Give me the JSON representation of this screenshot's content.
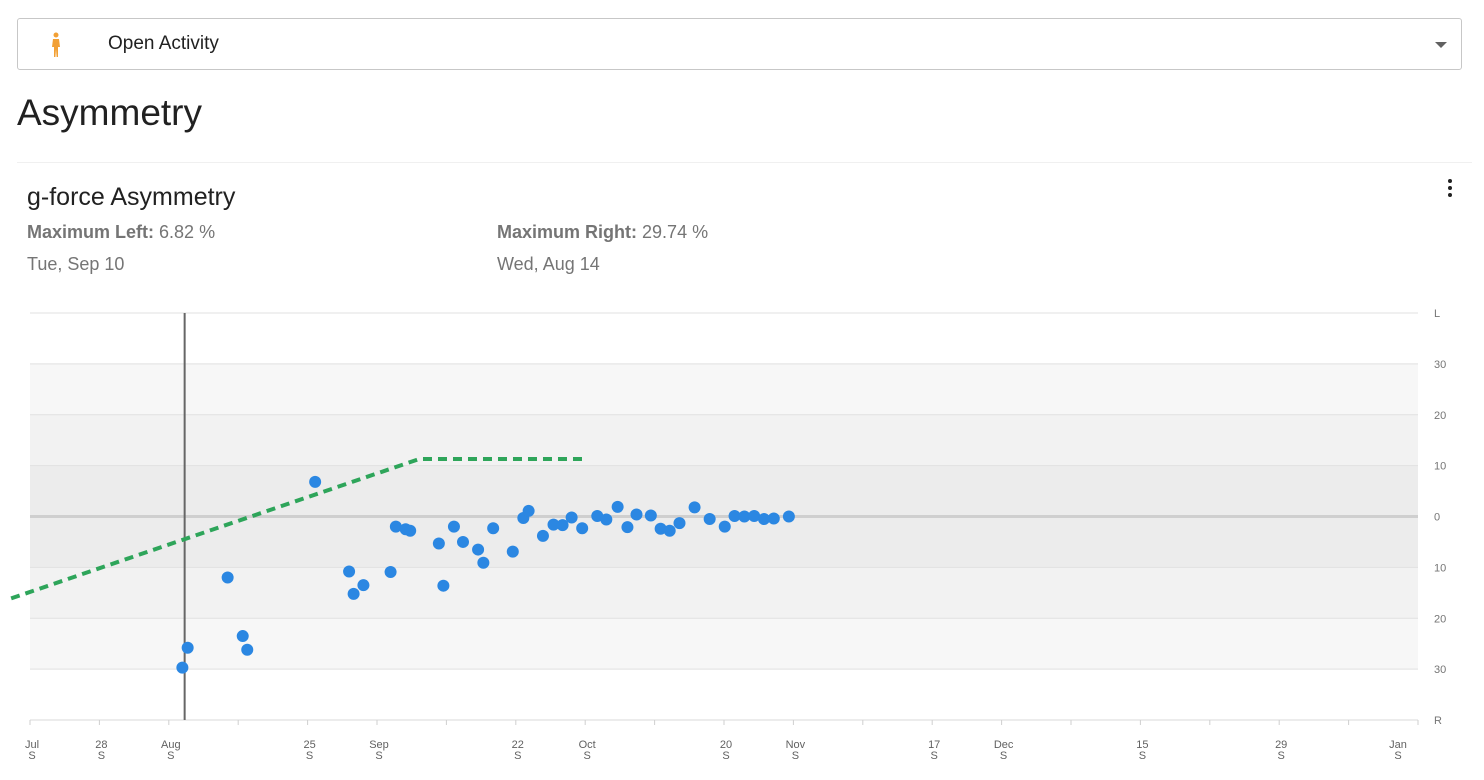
{
  "selector": {
    "label": "Open Activity",
    "icon": "person-figure-icon"
  },
  "page_title": "Asymmetry",
  "card": {
    "title": "g-force Asymmetry",
    "max_left": {
      "label": "Maximum Left:",
      "value": "6.82 %",
      "date": "Tue, Sep 10"
    },
    "max_right": {
      "label": "Maximum Right:",
      "value": "29.74 %",
      "date": "Wed, Aug 14"
    },
    "menu_icon": "more-vert-icon"
  },
  "colors": {
    "point": "#2b87e2",
    "trend": "#2ea55a",
    "marker": "#666666"
  },
  "chart_data": {
    "type": "scatter",
    "title": "g-force Asymmetry",
    "x_ticks": [
      {
        "top": "Jul",
        "bottom": "S"
      },
      {
        "top": "28",
        "bottom": "S"
      },
      {
        "top": "Aug",
        "bottom": "S"
      },
      {
        "top": "",
        "bottom": ""
      },
      {
        "top": "25",
        "bottom": "S"
      },
      {
        "top": "Sep",
        "bottom": "S"
      },
      {
        "top": "",
        "bottom": ""
      },
      {
        "top": "22",
        "bottom": "S"
      },
      {
        "top": "Oct",
        "bottom": "S"
      },
      {
        "top": "",
        "bottom": ""
      },
      {
        "top": "20",
        "bottom": "S"
      },
      {
        "top": "Nov",
        "bottom": "S"
      },
      {
        "top": "",
        "bottom": ""
      },
      {
        "top": "17",
        "bottom": "S"
      },
      {
        "top": "Dec",
        "bottom": "S"
      },
      {
        "top": "",
        "bottom": ""
      },
      {
        "top": "15",
        "bottom": "S"
      },
      {
        "top": "",
        "bottom": ""
      },
      {
        "top": "29",
        "bottom": "S"
      },
      {
        "top": "",
        "bottom": ""
      },
      {
        "top": "Jan",
        "bottom": "S"
      }
    ],
    "y_ticks": [
      "L",
      "30",
      "20",
      "10",
      "0",
      "10",
      "20",
      "30",
      "R"
    ],
    "ylim": [
      -40,
      40
    ],
    "x_unit": "days since Jul 21",
    "xlim": [
      0,
      184
    ],
    "selected_x": 20.5,
    "points": [
      [
        20.2,
        -29.7
      ],
      [
        20.9,
        -25.8
      ],
      [
        26.2,
        -12.0
      ],
      [
        28.2,
        -23.5
      ],
      [
        28.8,
        -26.2
      ],
      [
        37.8,
        6.8
      ],
      [
        42.3,
        -10.8
      ],
      [
        42.9,
        -15.2
      ],
      [
        44.2,
        -13.5
      ],
      [
        47.8,
        -10.9
      ],
      [
        48.5,
        -2.0
      ],
      [
        49.8,
        -2.5
      ],
      [
        50.4,
        -2.8
      ],
      [
        54.2,
        -5.3
      ],
      [
        54.8,
        -13.6
      ],
      [
        56.2,
        -2.0
      ],
      [
        57.4,
        -5.0
      ],
      [
        59.4,
        -6.5
      ],
      [
        60.1,
        -9.1
      ],
      [
        61.4,
        -2.3
      ],
      [
        64.0,
        -6.9
      ],
      [
        65.4,
        -0.3
      ],
      [
        66.1,
        1.1
      ],
      [
        68.0,
        -3.8
      ],
      [
        69.4,
        -1.6
      ],
      [
        70.6,
        -1.7
      ],
      [
        71.8,
        -0.2
      ],
      [
        73.2,
        -2.3
      ],
      [
        75.2,
        0.1
      ],
      [
        76.4,
        -0.6
      ],
      [
        77.9,
        1.9
      ],
      [
        79.2,
        -2.1
      ],
      [
        80.4,
        0.4
      ],
      [
        82.3,
        0.2
      ],
      [
        83.6,
        -2.4
      ],
      [
        84.8,
        -2.8
      ],
      [
        86.1,
        -1.3
      ],
      [
        88.1,
        1.8
      ],
      [
        90.1,
        -0.5
      ],
      [
        92.1,
        -2.0
      ],
      [
        93.4,
        0.1
      ],
      [
        94.7,
        0.0
      ],
      [
        96.0,
        0.1
      ],
      [
        97.3,
        -0.5
      ],
      [
        98.6,
        -0.4
      ],
      [
        100.6,
        0.0
      ]
    ],
    "trend_line": [
      [
        -2.5,
        -16.1
      ],
      [
        51.6,
        11.3
      ],
      [
        73.9,
        11.3
      ]
    ]
  }
}
